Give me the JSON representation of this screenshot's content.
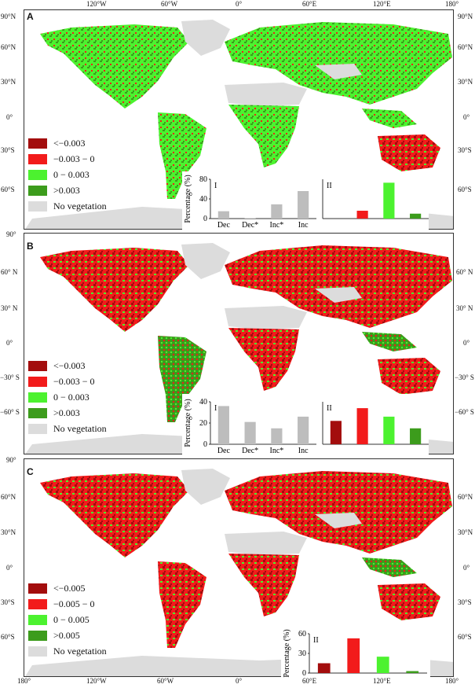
{
  "colors": {
    "dark_red": "#a30d0d",
    "red": "#f21b1b",
    "light_green": "#4cf22f",
    "dark_green": "#3c9c1c",
    "no_veg": "#dcdcdc",
    "gray_bar": "#bdbdbd"
  },
  "top_lon_labels": [
    "120°W",
    "60°W",
    "0°",
    "60°E",
    "120°E",
    "180°"
  ],
  "bottom_lon_labels": [
    "180°",
    "120°W",
    "60°W",
    "0°",
    "60°E",
    "120°E",
    "180°"
  ],
  "panels": [
    {
      "letter": "A",
      "lat_left": [
        "90°N",
        "60°N",
        "30°N",
        "0°",
        "30°S",
        "60°S"
      ],
      "lat_right": [
        "90°N",
        "60°N",
        "30°N",
        "0°",
        "30°S",
        "60°S"
      ],
      "legend": [
        "<−0.003",
        "−0.003 − 0",
        "0 − 0.003",
        ">0.003",
        "No vegetation"
      ],
      "inset": {
        "ylabel": "Percentage (%)",
        "panel_I": {
          "label": "I",
          "categories": [
            "Dec",
            "Dec*",
            "Inc*",
            "Inc"
          ],
          "values": [
            15,
            1,
            29,
            56
          ],
          "yticks": [
            "0",
            "40",
            "80"
          ],
          "ymax": 80
        },
        "panel_II": {
          "label": "II",
          "values": [
            0,
            16,
            73,
            10
          ],
          "ymax": 80
        }
      }
    },
    {
      "letter": "B",
      "lat_left": [
        "90°",
        "60° N",
        "30° N",
        "0°",
        "−30° S",
        "−60° S"
      ],
      "lat_right": [
        "60° N",
        "30° N",
        "0°",
        "−30° S",
        "−60° S"
      ],
      "legend": [
        "<−0.003",
        "−0.003 − 0",
        "0 − 0.003",
        ">0.003",
        "No vegetation"
      ],
      "inset": {
        "ylabel": "Percentage (%)",
        "panel_I": {
          "label": "I",
          "categories": [
            "Dec",
            "Dec*",
            "Inc*",
            "Inc"
          ],
          "values": [
            36,
            21,
            15,
            26
          ],
          "yticks": [
            "0",
            "20",
            "40"
          ],
          "ymax": 40
        },
        "panel_II": {
          "label": "II",
          "values": [
            22,
            34,
            26,
            15
          ],
          "ymax": 40
        }
      }
    },
    {
      "letter": "C",
      "lat_left": [
        "90°",
        "60°N",
        "30°N",
        "0°",
        "30°S",
        "60°S"
      ],
      "lat_right": [
        "60°N",
        "30°N",
        "0°",
        "30°S",
        "60°S"
      ],
      "legend": [
        "<−0.005",
        "−0.005 − 0",
        "0 − 0.005",
        ">0.005",
        "No vegetation"
      ],
      "inset": {
        "ylabel": "Percentage (%)",
        "panel_II": {
          "label": "II",
          "values": [
            15,
            53,
            25,
            3
          ],
          "yticks": [
            "0",
            "30",
            "60"
          ],
          "ymax": 60
        }
      }
    }
  ]
}
